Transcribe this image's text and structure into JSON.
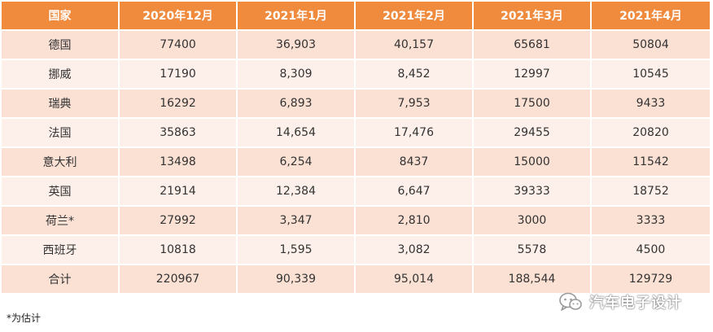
{
  "table": {
    "headers": [
      "国家",
      "2020年12月",
      "2021年1月",
      "2021年2月",
      "2021年3月",
      "2021年4月"
    ],
    "rows": [
      [
        "德国",
        "77400",
        "36,903",
        "40,157",
        "65681",
        "50804"
      ],
      [
        "挪威",
        "17190",
        "8,309",
        "8,452",
        "12997",
        "10545"
      ],
      [
        "瑞典",
        "16292",
        "6,893",
        "7,953",
        "17500",
        "9433"
      ],
      [
        "法国",
        "35863",
        "14,654",
        "17,476",
        "29455",
        "20820"
      ],
      [
        "意大利",
        "13498",
        "6,254",
        "8437",
        "15000",
        "11542"
      ],
      [
        "英国",
        "21914",
        "12,384",
        "6,647",
        "39333",
        "18752"
      ],
      [
        "荷兰*",
        "27992",
        "3,347",
        "2,810",
        "3000",
        "3333"
      ],
      [
        "西班牙",
        "10818",
        "1,595",
        "3,082",
        "5578",
        "4500"
      ],
      [
        "合计",
        "220967",
        "90,339",
        "95,014",
        "188,544",
        "129729"
      ]
    ]
  },
  "footnote": "*为估计",
  "watermark": {
    "text": "汽车电子设计",
    "icon": "wechat-icon"
  }
}
